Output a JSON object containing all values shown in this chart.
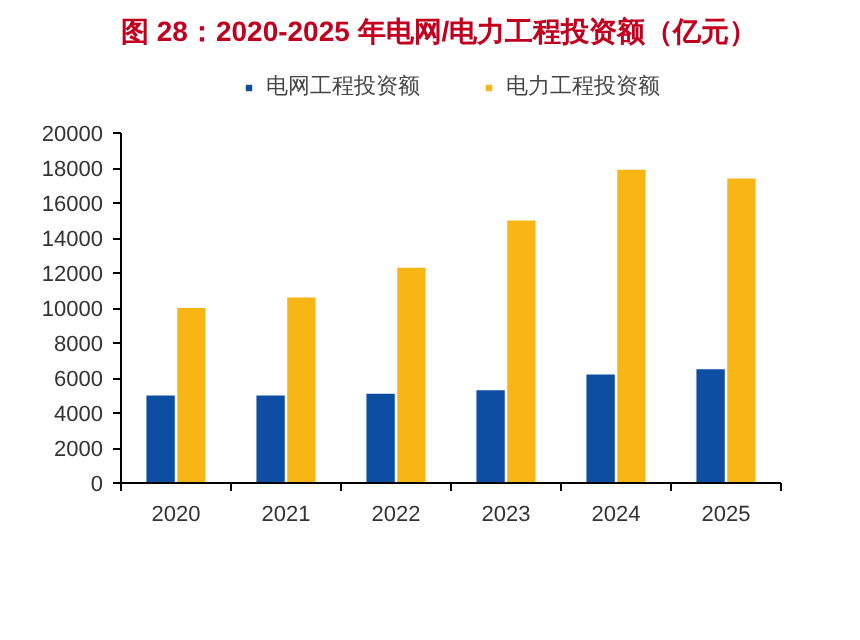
{
  "chart_data": {
    "type": "bar",
    "title": "图 28：2020-2025 年电网/电力工程投资额（亿元）",
    "categories": [
      "2020",
      "2021",
      "2022",
      "2023",
      "2024",
      "2025"
    ],
    "series": [
      {
        "name": "电网工程投资额",
        "color": "#0d4ea3",
        "values": [
          5000,
          5000,
          5100,
          5300,
          6200,
          6500
        ]
      },
      {
        "name": "电力工程投资额",
        "color": "#f8b614",
        "values": [
          10000,
          10600,
          12300,
          15000,
          17900,
          17400
        ]
      }
    ],
    "ylim": [
      0,
      20000
    ],
    "yticks": [
      0,
      2000,
      4000,
      6000,
      8000,
      10000,
      12000,
      14000,
      16000,
      18000,
      20000
    ],
    "grid": false,
    "legend": "top"
  }
}
